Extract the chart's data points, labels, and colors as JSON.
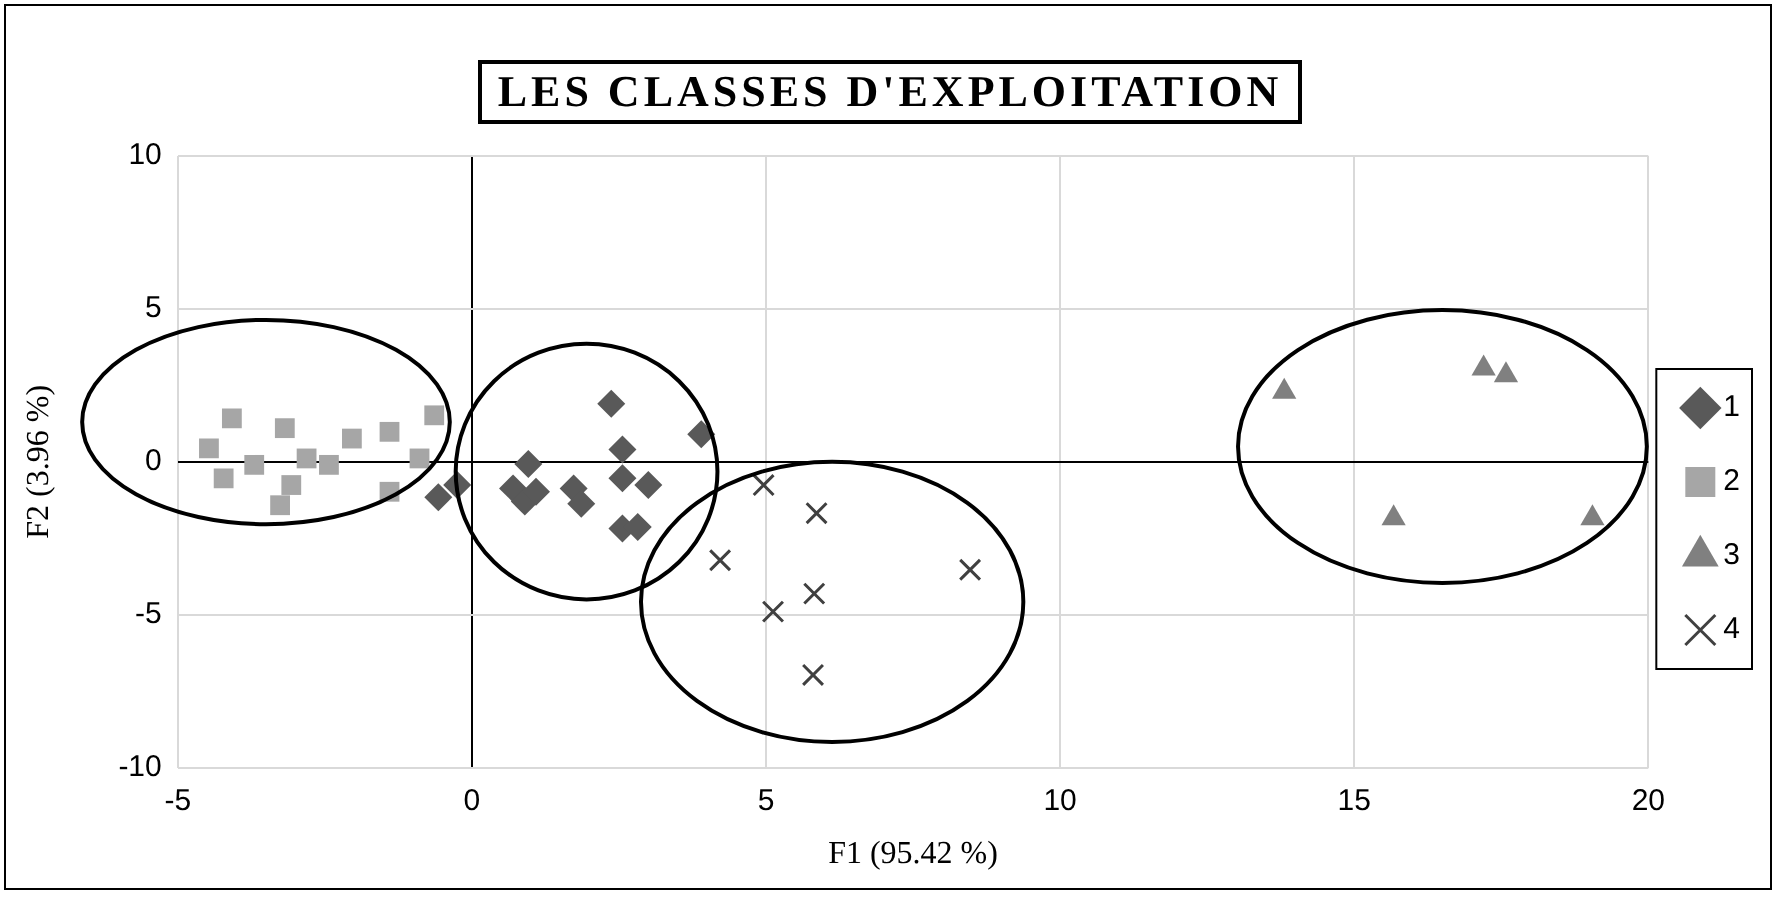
{
  "chart_data": {
    "type": "scatter",
    "title": "LES CLASSES D'EXPLOITATION",
    "xlabel": "F1 (95.42 %)",
    "ylabel": "F2 (3.96 %)",
    "xlim": [
      -5,
      20
    ],
    "xticks": [
      -5,
      0,
      5,
      10,
      15,
      20
    ],
    "ylim": [
      -10,
      10
    ],
    "yticks": [
      -10,
      -5,
      0,
      5,
      10
    ],
    "grid": true,
    "legend": "right",
    "series": [
      {
        "name": "1",
        "color": "#595959",
        "marker": "diamond",
        "x": [
          2.37,
          3.9,
          2.56,
          0.96,
          -0.25,
          -0.57,
          0.7,
          0.9,
          1.09,
          1.73,
          1.86,
          2.56,
          3.0,
          2.56,
          2.82
        ],
        "values": [
          1.9,
          0.9,
          0.4,
          -0.07,
          -0.76,
          -1.16,
          -0.87,
          -1.3,
          -0.98,
          -0.87,
          -1.37,
          -0.54,
          -0.76,
          -2.18,
          -2.13
        ]
      },
      {
        "name": "2",
        "color": "#a6a6a6",
        "marker": "square",
        "x": [
          -4.08,
          -3.18,
          -4.47,
          -4.22,
          -3.26,
          -2.43,
          -1.4,
          -1.4,
          -0.64,
          -0.89,
          -2.04,
          -2.81,
          -3.7,
          -3.07
        ],
        "values": [
          1.42,
          1.1,
          0.44,
          -0.54,
          -1.42,
          -0.1,
          0.98,
          -0.98,
          1.52,
          0.11,
          0.76,
          0.11,
          -0.1,
          -0.76
        ]
      },
      {
        "name": "3",
        "color": "#808080",
        "marker": "triangle",
        "x": [
          13.81,
          17.2,
          17.58,
          15.67,
          19.05
        ],
        "values": [
          2.29,
          3.05,
          2.83,
          -1.85,
          -1.85
        ]
      },
      {
        "name": "4",
        "color": "#404040",
        "marker": "cross",
        "x": [
          4.96,
          5.86,
          4.22,
          8.47,
          5.82,
          5.12,
          5.8
        ],
        "values": [
          -0.76,
          -1.68,
          -3.22,
          -3.53,
          -4.31,
          -4.9,
          -6.97
        ]
      }
    ]
  }
}
